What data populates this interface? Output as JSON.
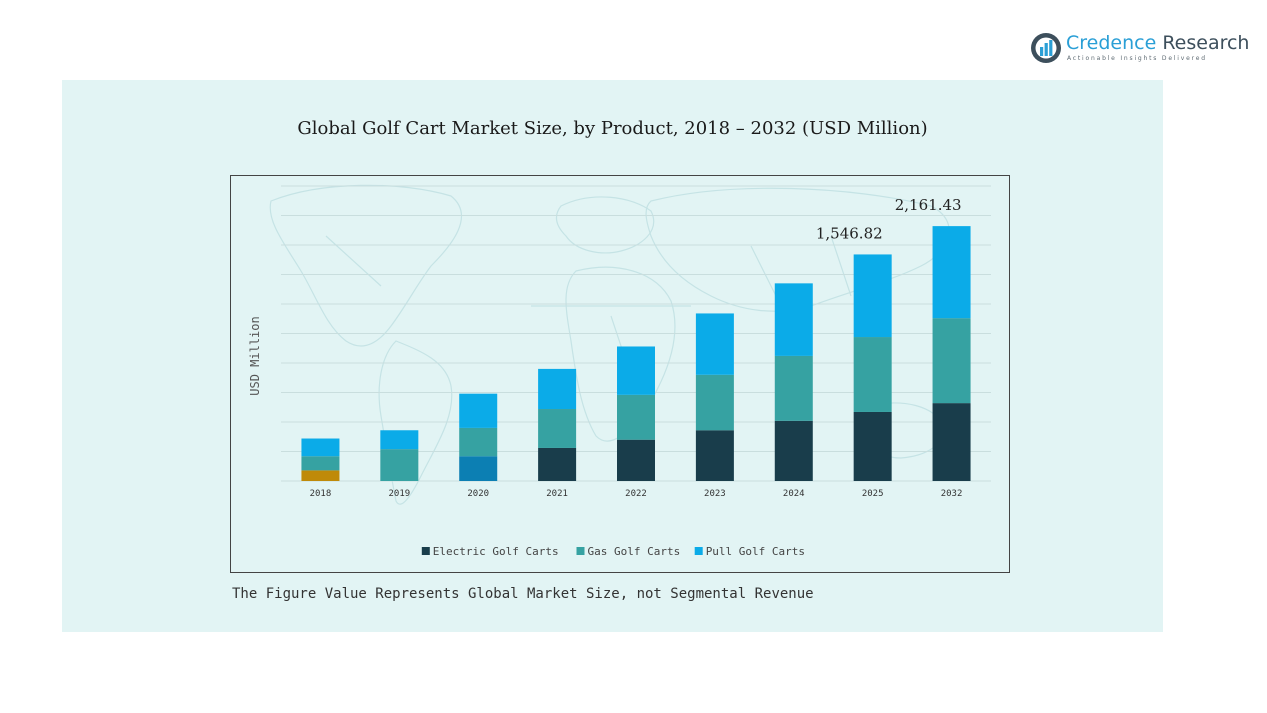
{
  "brand": {
    "name_part1": "Credence",
    "name_part2": " Research",
    "tagline": "Actionable Insights Delivered",
    "color_primary": "#2a9fd6",
    "color_dark": "#3d4f5c"
  },
  "footnote": "The Figure Value Represents Global Market Size, not Segmental Revenue",
  "chart_data": {
    "type": "bar",
    "stacked": true,
    "title": "Global Golf Cart Market Size, by Product, 2018 – 2032 (USD Million)",
    "ylabel": "USD Million",
    "xlabel": "",
    "categories": [
      "2018",
      "2019",
      "2020",
      "2021",
      "2022",
      "2023",
      "2024",
      "2025",
      "2032"
    ],
    "series": [
      {
        "name": "Electric Golf Carts",
        "color": "#193d4b",
        "values": [
          90,
          0,
          210,
          280,
          350,
          430,
          510,
          585,
          660
        ]
      },
      {
        "name": "Gas Golf Carts",
        "color": "#36a2a2",
        "values": [
          120,
          270,
          240,
          330,
          380,
          470,
          550,
          635,
          720
        ]
      },
      {
        "name": "Pull Golf Carts",
        "color": "#0babe8",
        "values": [
          150,
          160,
          290,
          340,
          410,
          520,
          615,
          700,
          780
        ]
      }
    ],
    "segment_overrides": [
      {
        "category": "2018",
        "series": "Electric Golf Carts",
        "color": "#bf8a09"
      },
      {
        "category": "2020",
        "series": "Electric Golf Carts",
        "color": "#0c7fb3"
      }
    ],
    "annotations": [
      {
        "category": "2025",
        "text": "1,546.82"
      },
      {
        "category": "2032",
        "text": "2,161.43"
      }
    ],
    "ylim": [
      0,
      2500
    ],
    "grid": true,
    "legend_position": "bottom",
    "background_map": "world-map"
  }
}
